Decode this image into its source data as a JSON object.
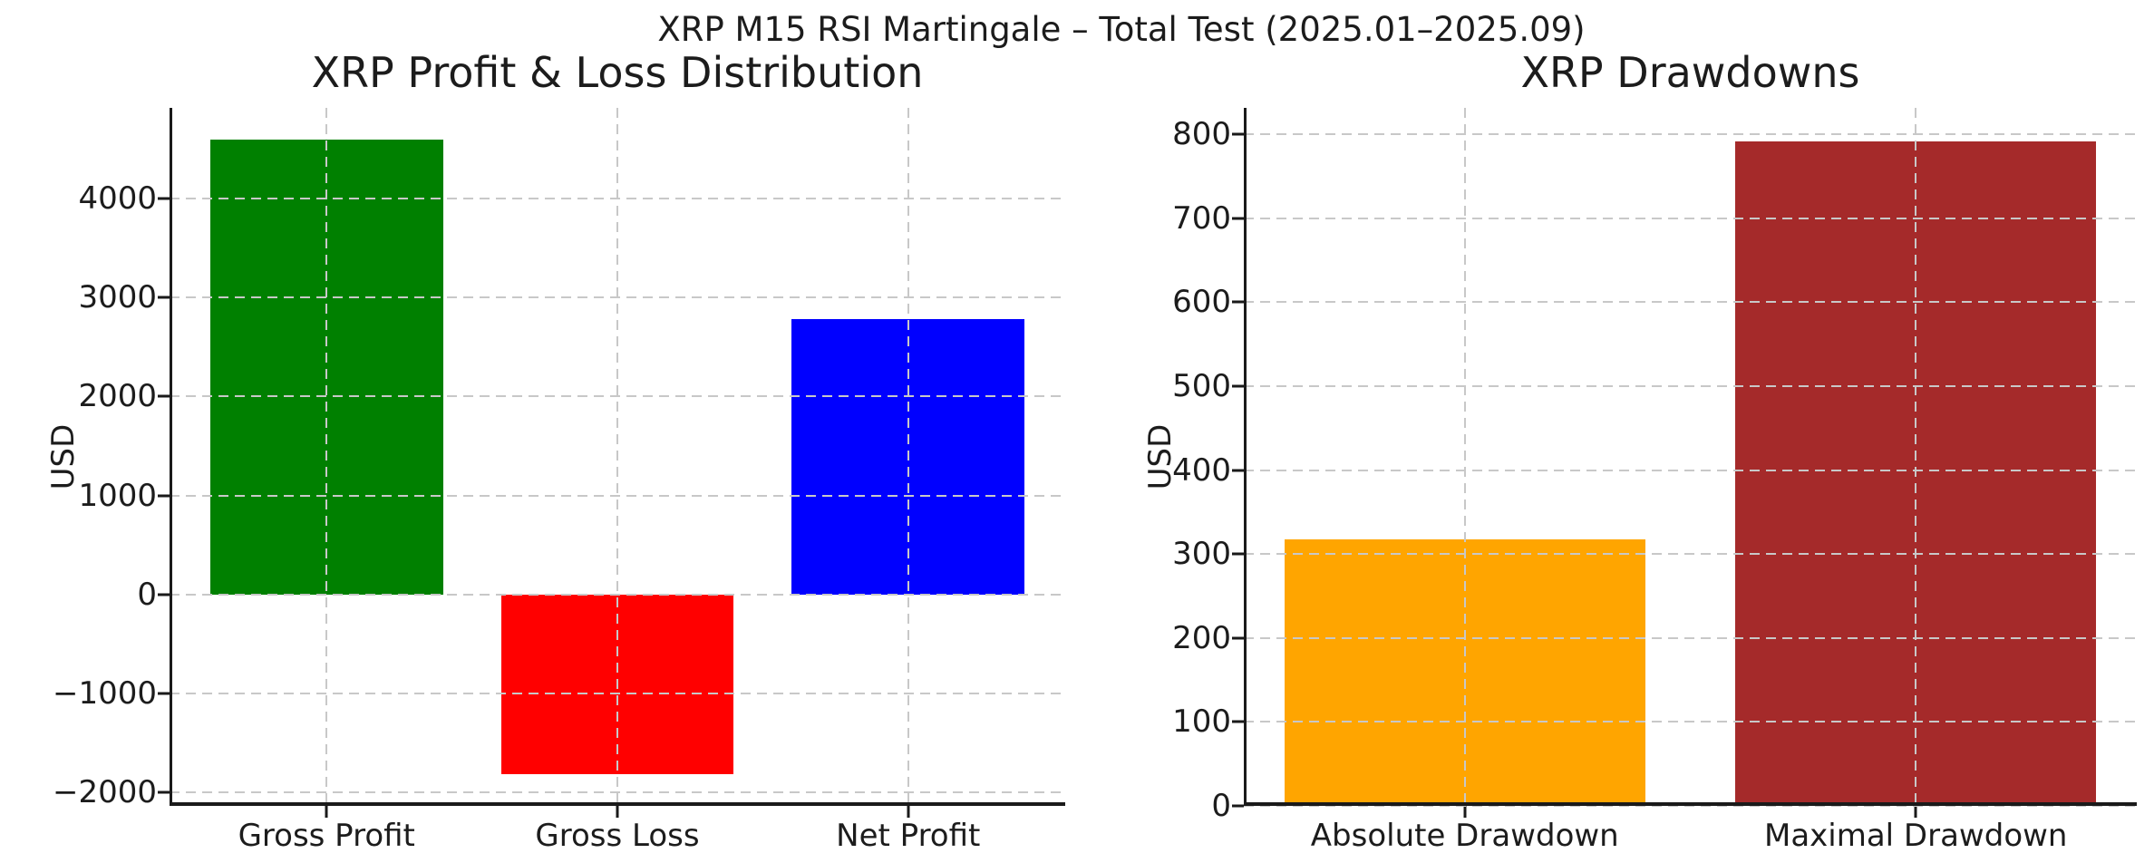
{
  "figure": {
    "suptitle": "XRP M15 RSI Martingale – Total Test (2025.01–2025.09)",
    "background_color": "#ffffff",
    "text_color": "#1c1c1c",
    "axis_color": "#1a1a1a",
    "grid_color": "#c8c8c8"
  },
  "chart_data": [
    {
      "type": "bar",
      "title": "XRP Profit & Loss Distribution",
      "ylabel": "USD",
      "categories": [
        "Gross Profit",
        "Gross Loss",
        "Net Profit"
      ],
      "values": [
        4600,
        -1820,
        2780
      ],
      "bar_colors": [
        "#008000",
        "#ff0000",
        "#0000ff"
      ],
      "ylim": [
        -2141,
        4921
      ],
      "yticks": [
        {
          "value": 4000,
          "label": "4000"
        },
        {
          "value": 3000,
          "label": "3000"
        },
        {
          "value": 2000,
          "label": "2000"
        },
        {
          "value": 1000,
          "label": "1000"
        },
        {
          "value": 0,
          "label": "0"
        },
        {
          "value": -1000,
          "label": "−1000"
        },
        {
          "value": -2000,
          "label": "−2000"
        }
      ],
      "grid": "dashed gridlines on both axes, drawn above bars",
      "legend": "none"
    },
    {
      "type": "bar",
      "title": "XRP Drawdowns",
      "ylabel": "USD",
      "categories": [
        "Absolute Drawdown",
        "Maximal Drawdown"
      ],
      "values": [
        318,
        792
      ],
      "bar_colors": [
        "#ffa500",
        "#a52a2a"
      ],
      "ylim": [
        0,
        831.6
      ],
      "yticks": [
        {
          "value": 800,
          "label": "800"
        },
        {
          "value": 700,
          "label": "700"
        },
        {
          "value": 600,
          "label": "600"
        },
        {
          "value": 500,
          "label": "500"
        },
        {
          "value": 400,
          "label": "400"
        },
        {
          "value": 300,
          "label": "300"
        },
        {
          "value": 200,
          "label": "200"
        },
        {
          "value": 100,
          "label": "100"
        },
        {
          "value": 0,
          "label": "0"
        }
      ],
      "grid": "dashed gridlines on both axes, drawn above bars",
      "legend": "none"
    }
  ]
}
